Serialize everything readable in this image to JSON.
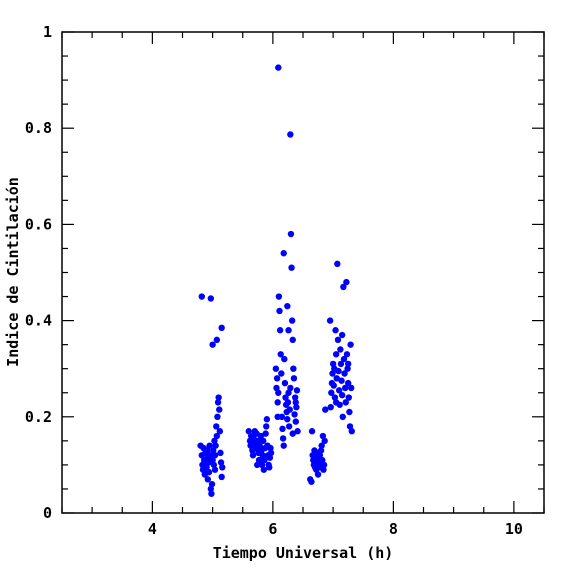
{
  "chart_data": {
    "type": "scatter",
    "xlabel": "Tiempo Universal (h)",
    "ylabel": "Indice de Cintilación",
    "xlim": [
      2.5,
      10.5
    ],
    "ylim": [
      0,
      1
    ],
    "x_ticks": [
      4,
      6,
      8,
      10
    ],
    "x_tick_labels": [
      "4",
      "6",
      "8",
      "10"
    ],
    "y_ticks": [
      0,
      0.2,
      0.4,
      0.6,
      0.8,
      1
    ],
    "y_tick_labels": [
      "0",
      "0.2",
      "0.4",
      "0.6",
      "0.8",
      "1"
    ],
    "grid": false,
    "marker_color": "#0000ff",
    "points": [
      [
        4.82,
        0.45
      ],
      [
        4.97,
        0.446
      ],
      [
        5.0,
        0.35
      ],
      [
        5.15,
        0.385
      ],
      [
        5.07,
        0.36
      ],
      [
        4.8,
        0.14
      ],
      [
        4.82,
        0.12
      ],
      [
        4.83,
        0.1
      ],
      [
        4.84,
        0.09
      ],
      [
        4.85,
        0.135
      ],
      [
        4.86,
        0.11
      ],
      [
        4.87,
        0.08
      ],
      [
        4.88,
        0.125
      ],
      [
        4.89,
        0.1
      ],
      [
        4.9,
        0.095
      ],
      [
        4.91,
        0.13
      ],
      [
        4.92,
        0.115
      ],
      [
        4.93,
        0.105
      ],
      [
        4.94,
        0.085
      ],
      [
        4.95,
        0.14
      ],
      [
        4.96,
        0.12
      ],
      [
        4.97,
        0.05
      ],
      [
        4.98,
        0.04
      ],
      [
        4.99,
        0.06
      ],
      [
        5.0,
        0.11
      ],
      [
        5.01,
        0.13
      ],
      [
        5.02,
        0.1
      ],
      [
        5.03,
        0.15
      ],
      [
        5.04,
        0.09
      ],
      [
        5.05,
        0.14
      ],
      [
        5.06,
        0.18
      ],
      [
        5.07,
        0.16
      ],
      [
        5.08,
        0.2
      ],
      [
        5.09,
        0.23
      ],
      [
        5.1,
        0.24
      ],
      [
        5.11,
        0.215
      ],
      [
        5.12,
        0.17
      ],
      [
        5.13,
        0.125
      ],
      [
        5.14,
        0.105
      ],
      [
        5.15,
        0.075
      ],
      [
        5.16,
        0.095
      ],
      [
        4.86,
        0.09
      ],
      [
        4.92,
        0.07
      ],
      [
        4.98,
        0.115
      ],
      [
        5.04,
        0.12
      ],
      [
        5.6,
        0.17
      ],
      [
        5.62,
        0.15
      ],
      [
        5.63,
        0.14
      ],
      [
        5.64,
        0.16
      ],
      [
        5.66,
        0.13
      ],
      [
        5.67,
        0.12
      ],
      [
        5.68,
        0.155
      ],
      [
        5.7,
        0.17
      ],
      [
        5.71,
        0.145
      ],
      [
        5.72,
        0.135
      ],
      [
        5.73,
        0.165
      ],
      [
        5.75,
        0.15
      ],
      [
        5.76,
        0.125
      ],
      [
        5.77,
        0.11
      ],
      [
        5.78,
        0.14
      ],
      [
        5.8,
        0.16
      ],
      [
        5.81,
        0.13
      ],
      [
        5.82,
        0.1
      ],
      [
        5.83,
        0.12
      ],
      [
        5.84,
        0.15
      ],
      [
        5.85,
        0.09
      ],
      [
        5.86,
        0.11
      ],
      [
        5.87,
        0.135
      ],
      [
        5.88,
        0.165
      ],
      [
        5.89,
        0.18
      ],
      [
        5.9,
        0.195
      ],
      [
        5.91,
        0.14
      ],
      [
        5.92,
        0.12
      ],
      [
        5.93,
        0.1
      ],
      [
        5.94,
        0.095
      ],
      [
        5.95,
        0.115
      ],
      [
        5.96,
        0.135
      ],
      [
        5.97,
        0.125
      ],
      [
        5.65,
        0.145
      ],
      [
        5.74,
        0.1
      ],
      [
        6.05,
        0.3
      ],
      [
        6.06,
        0.26
      ],
      [
        6.07,
        0.28
      ],
      [
        6.08,
        0.23
      ],
      [
        6.09,
        0.25
      ],
      [
        6.1,
        0.45
      ],
      [
        6.11,
        0.42
      ],
      [
        6.12,
        0.38
      ],
      [
        6.13,
        0.33
      ],
      [
        6.14,
        0.29
      ],
      [
        6.15,
        0.2
      ],
      [
        6.16,
        0.175
      ],
      [
        6.17,
        0.155
      ],
      [
        6.18,
        0.14
      ],
      [
        6.19,
        0.32
      ],
      [
        6.2,
        0.27
      ],
      [
        6.21,
        0.24
      ],
      [
        6.22,
        0.225
      ],
      [
        6.23,
        0.21
      ],
      [
        6.24,
        0.195
      ],
      [
        6.25,
        0.23
      ],
      [
        6.26,
        0.25
      ],
      [
        6.27,
        0.18
      ],
      [
        6.28,
        0.215
      ],
      [
        6.29,
        0.26
      ],
      [
        6.3,
        0.58
      ],
      [
        6.31,
        0.51
      ],
      [
        6.32,
        0.4
      ],
      [
        6.33,
        0.36
      ],
      [
        6.34,
        0.3
      ],
      [
        6.35,
        0.28
      ],
      [
        6.36,
        0.205
      ],
      [
        6.37,
        0.24
      ],
      [
        6.38,
        0.19
      ],
      [
        6.39,
        0.22
      ],
      [
        6.4,
        0.255
      ],
      [
        6.41,
        0.17
      ],
      [
        6.09,
        0.926
      ],
      [
        6.29,
        0.787
      ],
      [
        6.18,
        0.54
      ],
      [
        6.24,
        0.43
      ],
      [
        6.08,
        0.2
      ],
      [
        6.26,
        0.38
      ],
      [
        6.33,
        0.165
      ],
      [
        6.38,
        0.23
      ],
      [
        6.62,
        0.07
      ],
      [
        6.64,
        0.065
      ],
      [
        6.65,
        0.17
      ],
      [
        6.66,
        0.12
      ],
      [
        6.67,
        0.11
      ],
      [
        6.68,
        0.1
      ],
      [
        6.69,
        0.13
      ],
      [
        6.7,
        0.095
      ],
      [
        6.71,
        0.115
      ],
      [
        6.72,
        0.09
      ],
      [
        6.73,
        0.125
      ],
      [
        6.74,
        0.105
      ],
      [
        6.75,
        0.08
      ],
      [
        6.76,
        0.11
      ],
      [
        6.77,
        0.1
      ],
      [
        6.78,
        0.12
      ],
      [
        6.79,
        0.095
      ],
      [
        6.8,
        0.13
      ],
      [
        6.81,
        0.14
      ],
      [
        6.82,
        0.11
      ],
      [
        6.83,
        0.16
      ],
      [
        6.84,
        0.09
      ],
      [
        6.85,
        0.1
      ],
      [
        6.86,
        0.15
      ],
      [
        6.87,
        0.215
      ],
      [
        6.95,
        0.4
      ],
      [
        6.96,
        0.22
      ],
      [
        6.97,
        0.25
      ],
      [
        6.98,
        0.27
      ],
      [
        6.99,
        0.29
      ],
      [
        7.0,
        0.31
      ],
      [
        7.01,
        0.265
      ],
      [
        7.02,
        0.3
      ],
      [
        7.03,
        0.24
      ],
      [
        7.04,
        0.38
      ],
      [
        7.05,
        0.33
      ],
      [
        7.06,
        0.28
      ],
      [
        7.07,
        0.518
      ],
      [
        7.08,
        0.36
      ],
      [
        7.09,
        0.295
      ],
      [
        7.1,
        0.255
      ],
      [
        7.11,
        0.225
      ],
      [
        7.12,
        0.34
      ],
      [
        7.13,
        0.31
      ],
      [
        7.14,
        0.275
      ],
      [
        7.15,
        0.245
      ],
      [
        7.16,
        0.2
      ],
      [
        7.17,
        0.47
      ],
      [
        7.18,
        0.32
      ],
      [
        7.19,
        0.29
      ],
      [
        7.2,
        0.26
      ],
      [
        7.21,
        0.23
      ],
      [
        7.22,
        0.48
      ],
      [
        7.23,
        0.33
      ],
      [
        7.24,
        0.3
      ],
      [
        7.25,
        0.27
      ],
      [
        7.26,
        0.24
      ],
      [
        7.27,
        0.21
      ],
      [
        7.28,
        0.18
      ],
      [
        7.29,
        0.35
      ],
      [
        7.3,
        0.26
      ],
      [
        7.31,
        0.17
      ],
      [
        7.05,
        0.23
      ],
      [
        7.15,
        0.37
      ],
      [
        7.25,
        0.31
      ]
    ]
  }
}
